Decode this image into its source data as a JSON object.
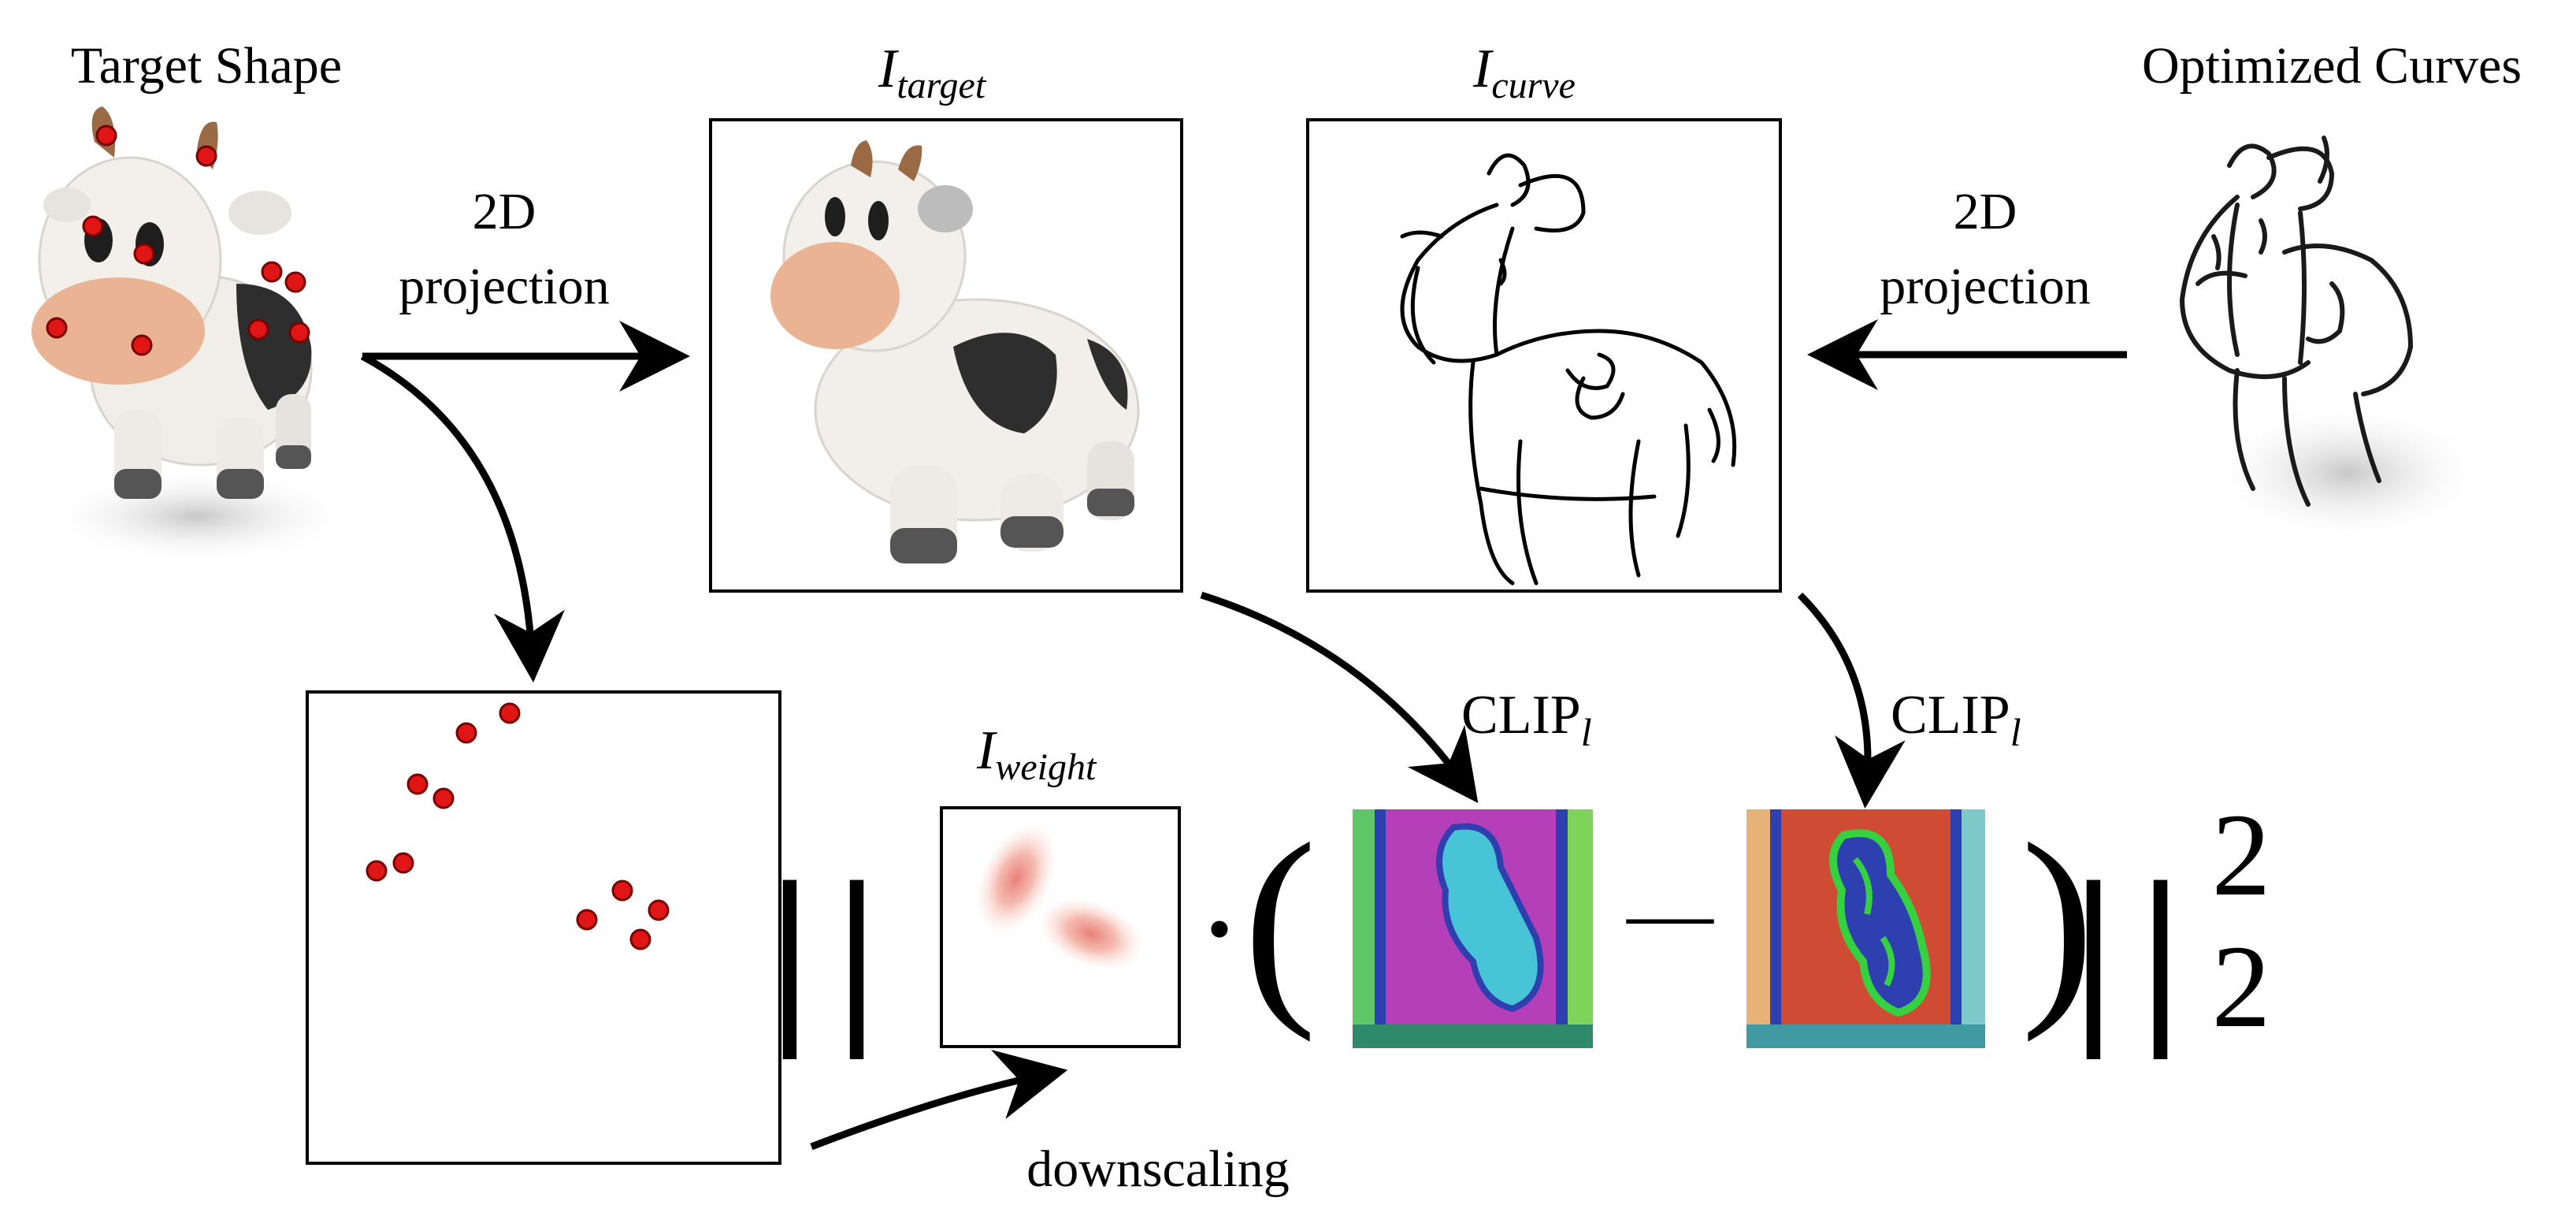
{
  "labels": {
    "target_shape": "Target Shape",
    "optimized_curves": "Optimized Curves",
    "projection_left_line1": "2D",
    "projection_left_line2": "projection",
    "projection_right_line1": "2D",
    "projection_right_line2": "projection",
    "i_target_main": "I",
    "i_target_sub": "target",
    "i_curve_main": "I",
    "i_curve_sub": "curve",
    "i_weight_main": "I",
    "i_weight_sub": "weight",
    "clip_left_main": "CLIP",
    "clip_left_sub": "l",
    "clip_right_main": "CLIP",
    "clip_right_sub": "l",
    "downscaling": "downscaling"
  },
  "formula": {
    "norm_open": "||",
    "dot": "·",
    "paren_open": "(",
    "minus": "—",
    "paren_close": ")",
    "norm_close": "||",
    "superscript": "2",
    "subscript": "2"
  },
  "colors": {
    "keypoint": "#e01515",
    "cow_white": "#f1eeea",
    "cow_muzzle": "#e9b394",
    "cow_horn": "#9a6a45",
    "cow_hoof": "#555555",
    "cow_spot": "#2e2e2e",
    "feature_magenta": "#b53fb8",
    "feature_cyan": "#47c4d6",
    "feature_red": "#cf4b33",
    "feature_green": "#35d13f",
    "feature_blue": "#2e3fb0"
  }
}
